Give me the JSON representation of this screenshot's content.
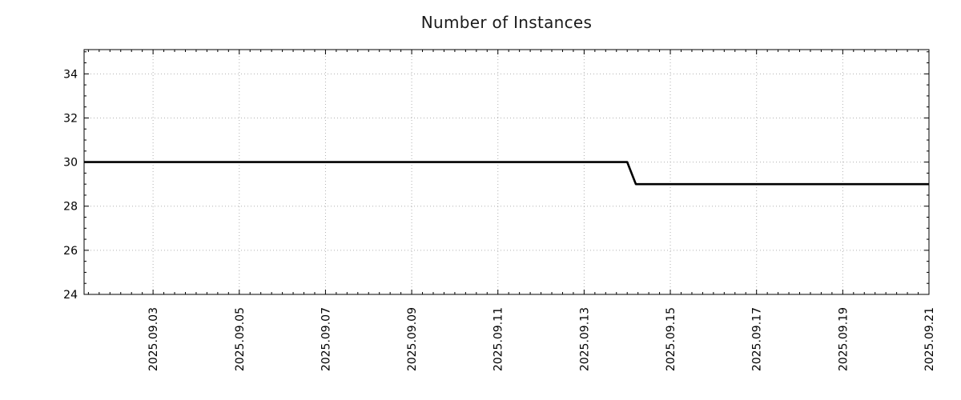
{
  "chart_data": {
    "type": "line",
    "title": "Number of Instances",
    "x_axis": {
      "unit": "days since 2025.09.01",
      "range": [
        0.4,
        20
      ],
      "major_ticks": [
        {
          "pos": 2,
          "label": "2025.09.03"
        },
        {
          "pos": 4,
          "label": "2025.09.05"
        },
        {
          "pos": 6,
          "label": "2025.09.07"
        },
        {
          "pos": 8,
          "label": "2025.09.09"
        },
        {
          "pos": 10,
          "label": "2025.09.11"
        },
        {
          "pos": 12,
          "label": "2025.09.13"
        },
        {
          "pos": 14,
          "label": "2025.09.15"
        },
        {
          "pos": 16,
          "label": "2025.09.17"
        },
        {
          "pos": 18,
          "label": "2025.09.19"
        },
        {
          "pos": 20,
          "label": "2025.09.21"
        }
      ],
      "minor_step": 0.25,
      "grid": true
    },
    "y_axis": {
      "range": [
        24,
        35.1
      ],
      "major_ticks": [
        24,
        26,
        28,
        30,
        32,
        34
      ],
      "minor_step": 0.5,
      "grid": true
    },
    "series": [
      {
        "name": "instances",
        "color": "#000000",
        "line_width": 2.6,
        "points": [
          [
            0.4,
            30
          ],
          [
            13.0,
            30
          ],
          [
            13.2,
            29
          ],
          [
            20,
            29
          ]
        ]
      }
    ],
    "legend": "none",
    "colors": {
      "grid": "#b0b0b0",
      "border": "#000000",
      "tick": "#000000",
      "text": "#000000",
      "background": "#ffffff"
    }
  }
}
